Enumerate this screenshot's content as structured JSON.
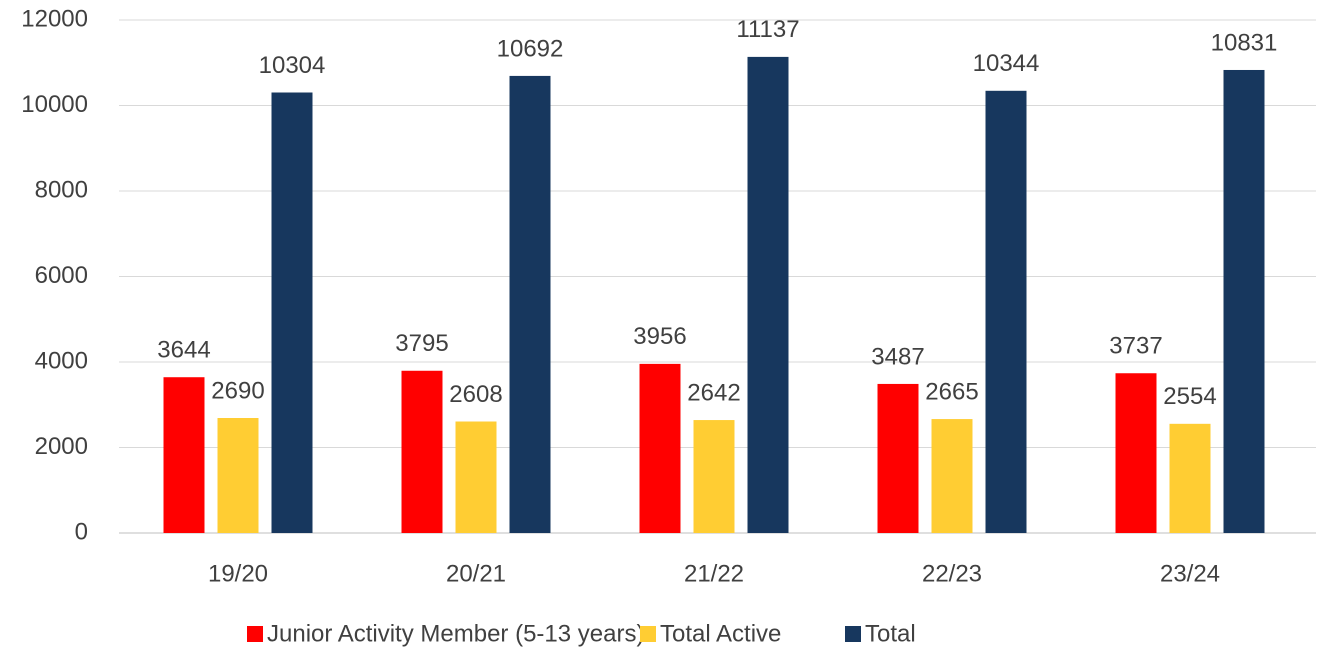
{
  "chart_data": {
    "type": "bar",
    "categories": [
      "19/20",
      "20/21",
      "21/22",
      "22/23",
      "23/24"
    ],
    "series": [
      {
        "name": "Junior Activity Member (5-13 years)",
        "color": "#ff0000",
        "values": [
          3644,
          3795,
          3956,
          3487,
          3737
        ]
      },
      {
        "name": "Total Active",
        "color": "#ffcd33",
        "values": [
          2690,
          2608,
          2642,
          2665,
          2554
        ]
      },
      {
        "name": "Total",
        "color": "#17375e",
        "values": [
          10304,
          10692,
          11137,
          10344,
          10831
        ]
      }
    ],
    "ylim": [
      0,
      12000
    ],
    "yticks": [
      0,
      2000,
      4000,
      6000,
      8000,
      10000,
      12000
    ],
    "grid": true,
    "legend": "bottom"
  }
}
